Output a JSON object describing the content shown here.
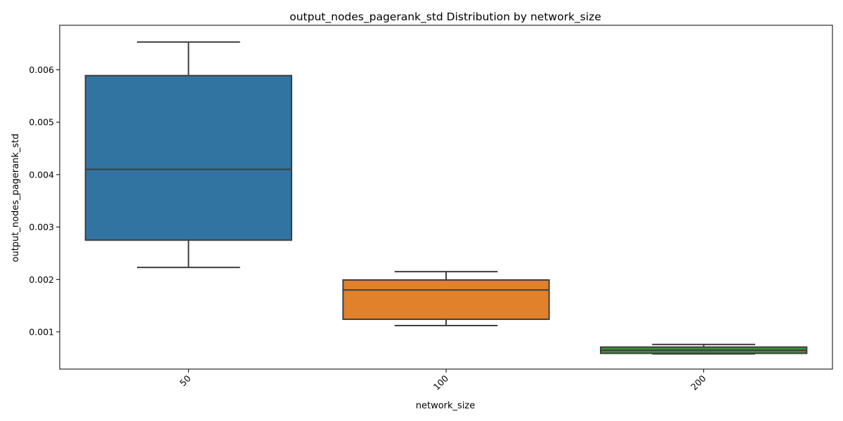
{
  "chart_data": {
    "type": "box",
    "title": "output_nodes_pagerank_std Distribution by network_size",
    "xlabel": "network_size",
    "ylabel": "output_nodes_pagerank_std",
    "categories": [
      "50",
      "100",
      "200"
    ],
    "boxes": [
      {
        "category": "50",
        "whisker_low": 0.00223,
        "q1": 0.00275,
        "median": 0.0041,
        "q3": 0.00589,
        "whisker_high": 0.00653,
        "color": "#3274a1"
      },
      {
        "category": "100",
        "whisker_low": 0.00112,
        "q1": 0.00124,
        "median": 0.0018,
        "q3": 0.00199,
        "whisker_high": 0.00215,
        "color": "#e1812c"
      },
      {
        "category": "200",
        "whisker_low": 0.00058,
        "q1": 0.00059,
        "median": 0.00065,
        "q3": 0.00071,
        "whisker_high": 0.00076,
        "color": "#3a923a"
      }
    ],
    "ylim": [
      0.00029,
      0.00685
    ],
    "yticks": [
      0.001,
      0.002,
      0.003,
      0.004,
      0.005,
      0.006
    ],
    "ytick_labels": [
      "0.001",
      "0.002",
      "0.003",
      "0.004",
      "0.005",
      "0.006"
    ],
    "xtick_rotation": 45,
    "grid": false,
    "line_color": "#3f3f3f"
  }
}
